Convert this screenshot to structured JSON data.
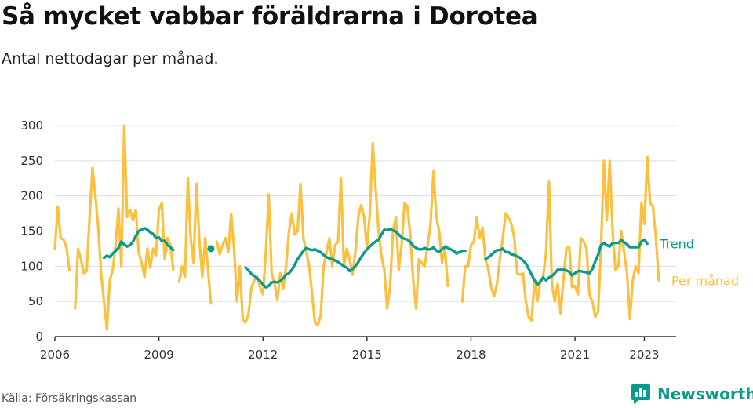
{
  "header": {
    "title": "Så mycket vabbar föräldrarna i Dorotea",
    "subtitle": "Antal nettodagar per månad."
  },
  "footer": {
    "source": "Källa: Försäkringskassan",
    "brand": "Newsworthy",
    "brand_icon": "newsworthy-logo-icon"
  },
  "colors": {
    "trend": "#0a9b8c",
    "monthly": "#fdbf3d",
    "grid": "#dddddd",
    "axis": "#333333",
    "brand": "#0a9b8c"
  },
  "chart_data": {
    "type": "line",
    "xlim": [
      "2006-01",
      "2023-12"
    ],
    "ylim": [
      0,
      300
    ],
    "yticks": [
      0,
      50,
      100,
      150,
      200,
      250,
      300
    ],
    "xticks": [
      {
        "date": "2006-01",
        "label": "2006"
      },
      {
        "date": "2009-01",
        "label": "2009"
      },
      {
        "date": "2012-01",
        "label": "2012"
      },
      {
        "date": "2015-01",
        "label": "2015"
      },
      {
        "date": "2018-01",
        "label": "2018"
      },
      {
        "date": "2021-01",
        "label": "2021"
      },
      {
        "date": "2023-01",
        "label": "2023"
      }
    ],
    "grid": true,
    "series": [
      {
        "name": "Per månad",
        "key": "monthly",
        "segments": [
          {
            "start": "2006-01",
            "values": [
              125,
              185,
              140,
              138,
              127,
              95
            ]
          },
          {
            "start": "2006-08",
            "values": [
              40,
              125,
              110,
              90,
              93,
              170,
              240,
              200,
              155,
              90,
              50,
              10,
              80,
              95,
              130,
              182,
              100,
              300,
              170,
              180,
              165,
              180,
              120,
              105,
              85,
              125,
              98,
              125,
              115,
              180,
              190,
              110,
              140,
              130,
              95
            ]
          },
          {
            "start": "2009-08",
            "values": [
              78,
              100,
              85,
              225,
              140,
              105,
              217,
              135,
              85,
              140,
              95,
              47
            ]
          },
          {
            "start": "2010-09",
            "values": [
              135,
              117,
              130,
              140,
              120,
              175,
              125,
              50,
              100,
              25,
              20,
              32,
              70,
              80,
              85,
              70,
              60,
              120,
              202,
              90,
              75,
              52,
              90,
              68,
              100,
              150,
              175,
              145,
              150,
              217,
              140,
              120,
              100,
              60,
              20,
              16,
              30,
              100,
              120,
              140,
              100,
              130,
              135,
              225,
              100,
              125,
              110,
              88,
              120,
              170,
              187,
              170,
              125,
              175,
              275,
              210,
              150,
              115,
              95,
              40,
              70,
              150,
              170,
              95,
              130,
              190,
              185,
              145,
              80,
              40,
              110,
              105,
              100,
              130,
              160,
              235,
              170,
              150,
              105,
              125,
              72
            ]
          },
          {
            "start": "2017-10",
            "values": [
              50,
              100,
              100,
              130,
              135,
              170,
              140,
              155,
              110,
              95,
              70,
              57,
              75,
              110,
              140,
              175,
              170,
              160,
              140,
              90,
              88,
              90,
              50,
              27,
              23,
              80,
              50,
              80,
              85,
              120,
              220,
              75,
              50,
              75,
              33,
              80,
              125,
              128,
              70,
              72,
              60,
              140,
              135,
              125,
              60,
              50,
              28,
              35,
              125,
              250,
              165,
              250,
              150,
              95,
              100,
              150,
              120,
              90,
              25,
              80,
              100,
              90,
              190,
              160,
              255,
              190,
              185,
              140,
              80
            ]
          }
        ]
      },
      {
        "name": "Trend",
        "key": "trend",
        "segments": [
          {
            "start": "2007-06",
            "values": [
              112,
              115,
              113,
              118,
              122,
              126,
              135,
              131,
              128,
              130,
              135,
              143,
              150,
              152,
              154,
              152,
              148,
              146,
              140,
              141,
              136,
              136,
              130,
              127,
              123
            ]
          },
          {
            "start": "2010-07",
            "values": [
              125
            ],
            "single": true
          },
          {
            "start": "2011-07",
            "values": [
              98,
              94,
              89,
              86,
              83,
              79,
              74,
              70,
              72,
              77,
              78,
              77,
              79,
              83,
              88,
              90,
              95,
              102,
              110,
              116,
              122,
              126,
              124,
              123,
              124,
              122,
              120,
              116,
              113,
              111,
              110,
              108,
              106,
              103,
              100,
              98,
              93,
              96,
              100,
              106,
              113,
              119,
              124,
              128,
              132,
              135,
              138,
              145,
              152,
              151,
              153,
              151,
              149,
              145,
              141,
              139,
              138,
              134,
              129,
              126,
              124,
              124,
              126,
              124,
              124,
              127,
              122,
              121,
              124,
              128,
              126,
              124,
              122,
              118,
              120,
              122,
              122
            ]
          },
          {
            "start": "2018-06",
            "values": [
              110,
              113,
              116,
              120,
              123,
              123,
              125,
              120,
              120,
              117,
              116,
              114,
              112,
              108,
              104,
              96,
              88,
              80,
              74,
              78,
              84,
              80,
              84,
              86,
              90,
              95,
              95,
              95,
              94,
              92,
              87,
              90,
              93,
              93,
              92,
              91,
              90,
              96,
              107,
              116,
              130,
              133,
              130,
              128,
              133,
              133,
              133,
              137,
              134,
              131,
              127,
              127,
              127,
              127,
              135,
              138,
              132
            ]
          }
        ]
      }
    ],
    "series_labels": [
      {
        "series": "trend",
        "text": "Trend"
      },
      {
        "series": "monthly",
        "text": "Per månad"
      }
    ]
  }
}
